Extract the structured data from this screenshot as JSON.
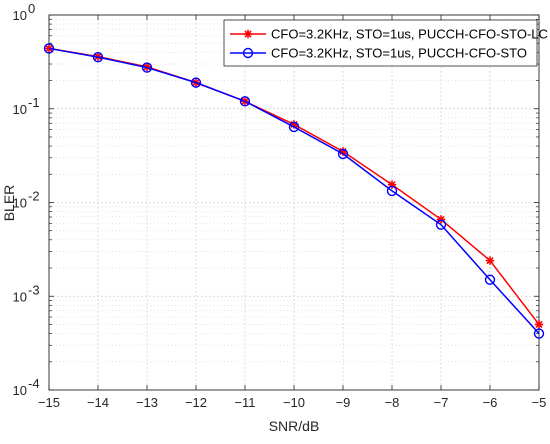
{
  "chart_data": {
    "type": "line",
    "xlabel": "SNR/dB",
    "ylabel": "BLER",
    "xlim": [
      -15,
      -5
    ],
    "ylim": [
      0.0001,
      1
    ],
    "yscale": "log",
    "grid": true,
    "minor_grid": true,
    "legend_position": "top-right",
    "x_ticks": [
      -15,
      -14,
      -13,
      -12,
      -11,
      -10,
      -9,
      -8,
      -7,
      -6,
      -5
    ],
    "x_tick_labels": [
      "−15",
      "−14",
      "−13",
      "−12",
      "−11",
      "−10",
      "−9",
      "−8",
      "−7",
      "−6",
      "−5"
    ],
    "y_ticks": [
      {
        "value": 1,
        "base": "10",
        "exp": "0"
      },
      {
        "value": 0.1,
        "base": "10",
        "exp": "-1"
      },
      {
        "value": 0.01,
        "base": "10",
        "exp": "-2"
      },
      {
        "value": 0.001,
        "base": "10",
        "exp": "-3"
      },
      {
        "value": 0.0001,
        "base": "10",
        "exp": "-4"
      }
    ],
    "x": [
      -15,
      -14,
      -13,
      -12,
      -11,
      -10,
      -9,
      -8,
      -7,
      -6,
      -5
    ],
    "series": [
      {
        "name": "CFO=3.2KHz, STO=1us, PUCCH-CFO-STO-LC",
        "color": "#ff0000",
        "marker": "asterisk",
        "values": [
          0.44,
          0.36,
          0.28,
          0.19,
          0.12,
          0.068,
          0.035,
          0.0155,
          0.0066,
          0.0024,
          0.0005
        ]
      },
      {
        "name": "CFO=3.2KHz, STO=1us, PUCCH-CFO-STO",
        "color": "#0000ff",
        "marker": "circle",
        "values": [
          0.44,
          0.355,
          0.275,
          0.19,
          0.12,
          0.064,
          0.033,
          0.0133,
          0.0058,
          0.0015,
          0.0004
        ]
      }
    ]
  }
}
